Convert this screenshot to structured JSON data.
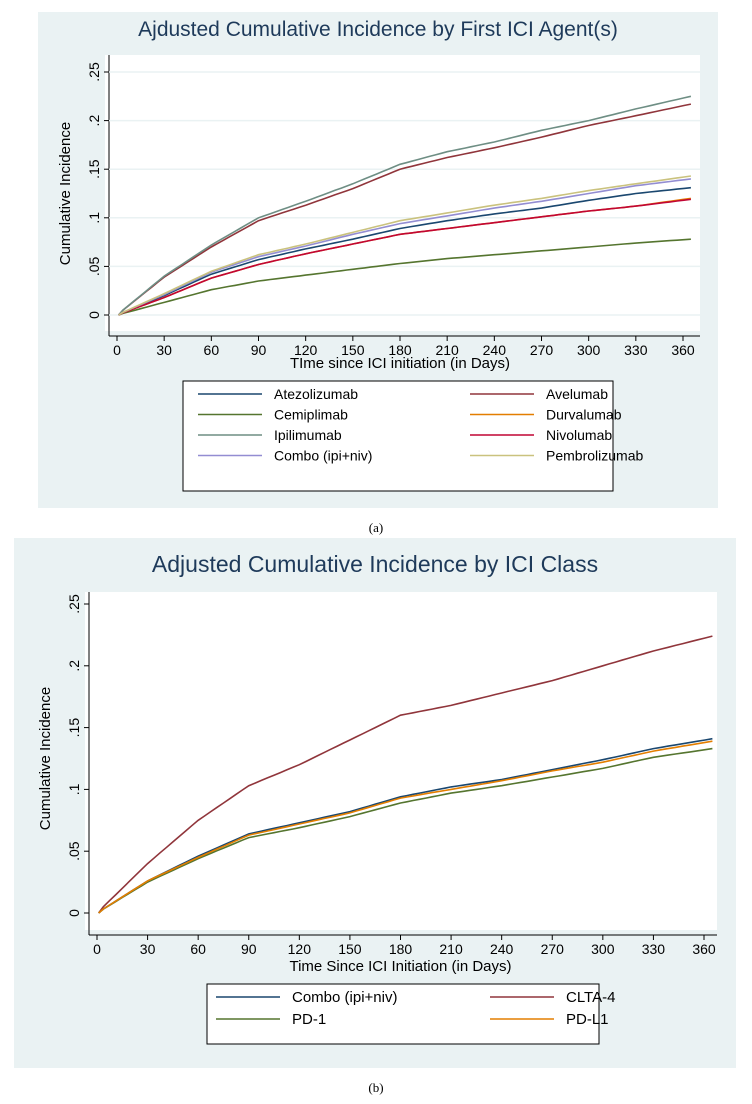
{
  "chart_data": [
    {
      "type": "line",
      "caption": "(a)",
      "title": "Ajdusted Cumulative Incidence by First ICI Agent(s)",
      "xlabel": "TIme since ICI initiation (in Days)",
      "ylabel": "Cumulative Incidence",
      "xlim": [
        0,
        365
      ],
      "ylim": [
        0,
        0.25
      ],
      "xticks": [
        0,
        30,
        60,
        90,
        120,
        150,
        180,
        210,
        240,
        270,
        300,
        330,
        360
      ],
      "yticks": [
        0,
        0.05,
        0.1,
        0.15,
        0.2,
        0.25
      ],
      "ytick_labels": [
        "0",
        ".05",
        ".1",
        ".15",
        ".2",
        ".25"
      ],
      "grid": true,
      "legend": "bottom",
      "x": [
        0,
        30,
        60,
        90,
        120,
        150,
        180,
        210,
        240,
        270,
        300,
        330,
        365
      ],
      "series": [
        {
          "name": "Atezolizumab",
          "color": "#1a476f",
          "values": [
            0,
            0.02,
            0.042,
            0.057,
            0.068,
            0.078,
            0.089,
            0.097,
            0.104,
            0.11,
            0.118,
            0.125,
            0.131
          ]
        },
        {
          "name": "Avelumab",
          "color": "#90353b",
          "values": [
            0,
            0.039,
            0.07,
            0.097,
            0.113,
            0.13,
            0.15,
            0.162,
            0.172,
            0.183,
            0.195,
            0.205,
            0.217
          ]
        },
        {
          "name": "Cemiplimab",
          "color": "#55752f",
          "values": [
            0,
            0.013,
            0.026,
            0.035,
            0.041,
            0.047,
            0.053,
            0.058,
            0.062,
            0.066,
            0.07,
            0.074,
            0.078
          ]
        },
        {
          "name": "Durvalumab",
          "color": "#e37e00",
          "values": [
            0,
            0.018,
            0.038,
            0.052,
            0.063,
            0.073,
            0.083,
            0.089,
            0.095,
            0.101,
            0.107,
            0.112,
            0.12
          ]
        },
        {
          "name": "Ipilimumab",
          "color": "#6e8e84",
          "values": [
            0,
            0.04,
            0.072,
            0.1,
            0.117,
            0.135,
            0.155,
            0.168,
            0.178,
            0.19,
            0.2,
            0.212,
            0.225
          ]
        },
        {
          "name": "Nivolumab",
          "color": "#c10534",
          "values": [
            0,
            0.018,
            0.038,
            0.052,
            0.063,
            0.073,
            0.083,
            0.089,
            0.095,
            0.101,
            0.107,
            0.112,
            0.119
          ]
        },
        {
          "name": "Combo (ipi+niv)",
          "color": "#938dd2",
          "values": [
            0,
            0.021,
            0.044,
            0.06,
            0.071,
            0.083,
            0.094,
            0.102,
            0.11,
            0.117,
            0.125,
            0.133,
            0.14
          ]
        },
        {
          "name": "Pembrolizumab",
          "color": "#cac27e",
          "values": [
            0,
            0.022,
            0.045,
            0.062,
            0.073,
            0.085,
            0.097,
            0.105,
            0.113,
            0.12,
            0.128,
            0.135,
            0.143
          ]
        }
      ]
    },
    {
      "type": "line",
      "caption": "(b)",
      "title": "Adjusted Cumulative Incidence by ICI Class",
      "xlabel": "Time Since ICI Initiation (in Days)",
      "ylabel": "Cumulative Incidence",
      "xlim": [
        0,
        365
      ],
      "ylim": [
        0,
        0.25
      ],
      "xticks": [
        0,
        30,
        60,
        90,
        120,
        150,
        180,
        210,
        240,
        270,
        300,
        330,
        360
      ],
      "yticks": [
        0,
        0.05,
        0.1,
        0.15,
        0.2,
        0.25
      ],
      "ytick_labels": [
        "0",
        ".05",
        ".1",
        ".15",
        ".2",
        ".25"
      ],
      "grid": false,
      "legend": "bottom",
      "x": [
        0,
        30,
        60,
        90,
        120,
        150,
        180,
        210,
        240,
        270,
        300,
        330,
        365
      ],
      "series": [
        {
          "name": "Combo (ipi+niv)",
          "color": "#1a476f",
          "values": [
            0,
            0.026,
            0.046,
            0.064,
            0.073,
            0.082,
            0.094,
            0.102,
            0.108,
            0.116,
            0.124,
            0.133,
            0.141
          ]
        },
        {
          "name": "CLTA-4",
          "color": "#90353b",
          "values": [
            0,
            0.04,
            0.075,
            0.103,
            0.12,
            0.14,
            0.16,
            0.168,
            0.178,
            0.188,
            0.2,
            0.212,
            0.224
          ]
        },
        {
          "name": "PD-1",
          "color": "#55752f",
          "values": [
            0,
            0.025,
            0.044,
            0.061,
            0.069,
            0.078,
            0.089,
            0.097,
            0.103,
            0.11,
            0.117,
            0.126,
            0.133
          ]
        },
        {
          "name": "PD-L1",
          "color": "#e37e00",
          "values": [
            0,
            0.026,
            0.045,
            0.063,
            0.072,
            0.081,
            0.093,
            0.1,
            0.107,
            0.115,
            0.122,
            0.131,
            0.139
          ]
        }
      ]
    }
  ]
}
